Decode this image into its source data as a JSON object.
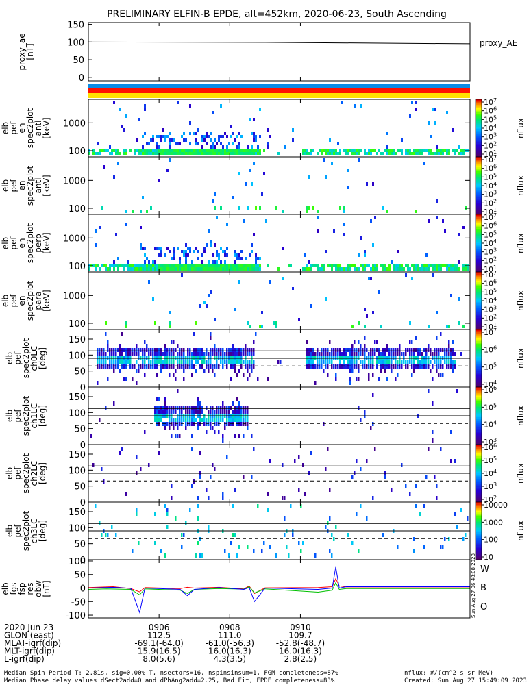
{
  "title": "PRELIMINARY ELFIN-B EPDE, alt=452km, 2020-06-23, South Ascending",
  "panels": [
    {
      "ylabel": [
        "proxy_ae",
        "[nT]"
      ],
      "legend": "proxy_AE"
    },
    {
      "ylabel": [
        "elb",
        "pef",
        "en",
        "spec2plot",
        "anti",
        "[keV]"
      ],
      "cb_label": "nflux"
    },
    {
      "ylabel": [
        "elb",
        "pef",
        "en",
        "spec2plot",
        "anti",
        "[keV]"
      ],
      "cb_label": "nflux"
    },
    {
      "ylabel": [
        "elb",
        "pef",
        "en",
        "spec2plot",
        "perp",
        "[keV]"
      ],
      "cb_label": "nflux"
    },
    {
      "ylabel": [
        "elb",
        "pef",
        "en",
        "spec2plot",
        "para",
        "[keV]"
      ],
      "cb_label": "nflux"
    },
    {
      "ylabel": [
        "elb",
        "pef",
        "spec2plot",
        "ch0LC",
        "[deg]"
      ],
      "cb_label": "nflux"
    },
    {
      "ylabel": [
        "elb",
        "pef",
        "spec2plot",
        "ch1LC",
        "[deg]"
      ],
      "cb_label": "nflux"
    },
    {
      "ylabel": [
        "elb",
        "pef",
        "spec2plot",
        "ch2LC",
        "[deg]"
      ],
      "cb_label": "nflux"
    },
    {
      "ylabel": [
        "elb",
        "pef",
        "spec2plot",
        "ch3LC",
        "[deg]"
      ],
      "cb_label": "nflux"
    },
    {
      "ylabel": [
        "elb",
        "fgs",
        "fsp",
        "res",
        "obw",
        "[nT]"
      ],
      "legend": [
        "W",
        "B",
        "O"
      ],
      "stamp": "Sun Aug 27 06:48:08 2023"
    }
  ],
  "colorbars": [
    {
      "ticks": [
        "10^7",
        "10^6",
        "10^5",
        "10^4",
        "10^3",
        "10^2",
        "10^1"
      ]
    },
    {
      "ticks": [
        "10^7",
        "10^6",
        "10^5",
        "10^4",
        "10^3",
        "10^2",
        "10^1"
      ]
    },
    {
      "ticks": [
        "10^7",
        "10^6",
        "10^5",
        "10^4",
        "10^3",
        "10^2",
        "10^1"
      ]
    },
    {
      "ticks": [
        "10^7",
        "10^6",
        "10^5",
        "10^4",
        "10^3",
        "10^2",
        "10^1"
      ]
    },
    {
      "ticks": [
        "10^7",
        "10^6",
        "10^5",
        "10^4"
      ]
    },
    {
      "ticks": [
        "10^6",
        "10^5",
        "10^4",
        "10^3"
      ]
    },
    {
      "ticks": [
        "10^6",
        "10^5",
        "10^4",
        "10^3",
        "10^2"
      ]
    },
    {
      "ticks": [
        "10000",
        "1000",
        "100",
        "10"
      ]
    }
  ],
  "colors": {
    "ae_line": "#000000",
    "bar_blue": "#0a8ce6",
    "bar_red": "#ff1100",
    "bar_yellow": "#ffe000",
    "W": "#ff0000",
    "B": "#00c000",
    "O": "#0000ff"
  },
  "chart_data": {
    "type": "line",
    "x_axis": {
      "ticks": [
        "0906",
        "0908",
        "0910"
      ],
      "x_range_min": [
        1184,
        1194.8
      ],
      "ticks_min": [
        1186,
        1188,
        1190
      ]
    },
    "proxy_ae": {
      "ylim": [
        -10,
        155
      ],
      "yticks": [
        "150",
        "100",
        "50",
        "0"
      ],
      "x": [
        1184,
        1189,
        1194.8
      ],
      "y": [
        100,
        99,
        95
      ]
    },
    "energy_spectra": {
      "yscale": "log",
      "ylim_keV": [
        60,
        7000
      ],
      "yticks": [
        "1000",
        "100"
      ]
    },
    "pitch_angle": {
      "ylim_deg": [
        0,
        180
      ],
      "yticks": [
        "150",
        "100",
        "50",
        "0"
      ],
      "lc_lines_deg": [
        113,
        90,
        66
      ]
    },
    "residual_field": {
      "ylim": [
        -110,
        105
      ],
      "yticks": [
        "100",
        "50",
        "0",
        "-50",
        "-100"
      ],
      "series": [
        {
          "name": "W",
          "x": [
            1184,
            1184.7,
            1185.2,
            1185.45,
            1185.6,
            1186.6,
            1186.8,
            1187,
            1187.7,
            1188.4,
            1188.55,
            1188.7,
            1189,
            1190.5,
            1190.9,
            1191,
            1191.1,
            1191.3,
            1194.8
          ],
          "y": [
            2,
            5,
            -2,
            -14,
            2,
            -2,
            3,
            0,
            3,
            -3,
            8,
            -20,
            1,
            2,
            5,
            35,
            8,
            4,
            4
          ]
        },
        {
          "name": "B",
          "x": [
            1184,
            1184.5,
            1185.2,
            1185.45,
            1185.6,
            1186.6,
            1186.8,
            1187,
            1187.7,
            1188.4,
            1188.55,
            1188.7,
            1189,
            1190.5,
            1190.9,
            1191,
            1191.1,
            1191.3,
            1194.8
          ],
          "y": [
            -5,
            -3,
            -5,
            -25,
            -3,
            -8,
            -20,
            -5,
            -2,
            -4,
            5,
            -18,
            -3,
            -15,
            -8,
            20,
            -5,
            -2,
            -2
          ]
        },
        {
          "name": "O",
          "x": [
            1184,
            1184.7,
            1185.2,
            1185.45,
            1185.6,
            1186.6,
            1186.8,
            1187,
            1187.7,
            1188.4,
            1188.55,
            1188.7,
            1189,
            1190.5,
            1190.9,
            1191,
            1191.1,
            1191.3,
            1194.8
          ],
          "y": [
            0,
            3,
            -1,
            -90,
            0,
            -5,
            -28,
            -5,
            2,
            -5,
            2,
            -50,
            0,
            -5,
            0,
            78,
            0,
            5,
            5
          ]
        }
      ]
    }
  },
  "footer": {
    "rows": [
      {
        "label": "2020 Jun 23",
        "values": [
          "0906",
          "0908",
          "0910"
        ]
      },
      {
        "label": "GLON (east)",
        "values": [
          "112.5",
          "111.0",
          "109.7"
        ]
      },
      {
        "label": "MLAT-igrf(dip)",
        "values": [
          "-69.1(-64.0)",
          "-61.0(-56.3)",
          "-52.8(-48.7)"
        ]
      },
      {
        "label": "MLT-igrf(dip)",
        "values": [
          "15.9(16.5)",
          "16.0(16.3)",
          "16.0(16.3)"
        ]
      },
      {
        "label": "L-igrf(dip)",
        "values": [
          "8.0(5.6)",
          "4.3(3.5)",
          "2.8(2.5)"
        ]
      }
    ],
    "note1": "Median Spin Period T: 2.81s, sig=0.00% T, nsectors=16, nspinsinsum=1, FGM completeness=87%",
    "note2": "Median Phase delay values dSect2add=0 and dPhAng2add=2.25, Bad Fit, EPDE completeness=83%",
    "units": "nflux: #/(cm^2 s sr MeV)",
    "created": "Created: Sun Aug 27 15:49:09 2023"
  }
}
